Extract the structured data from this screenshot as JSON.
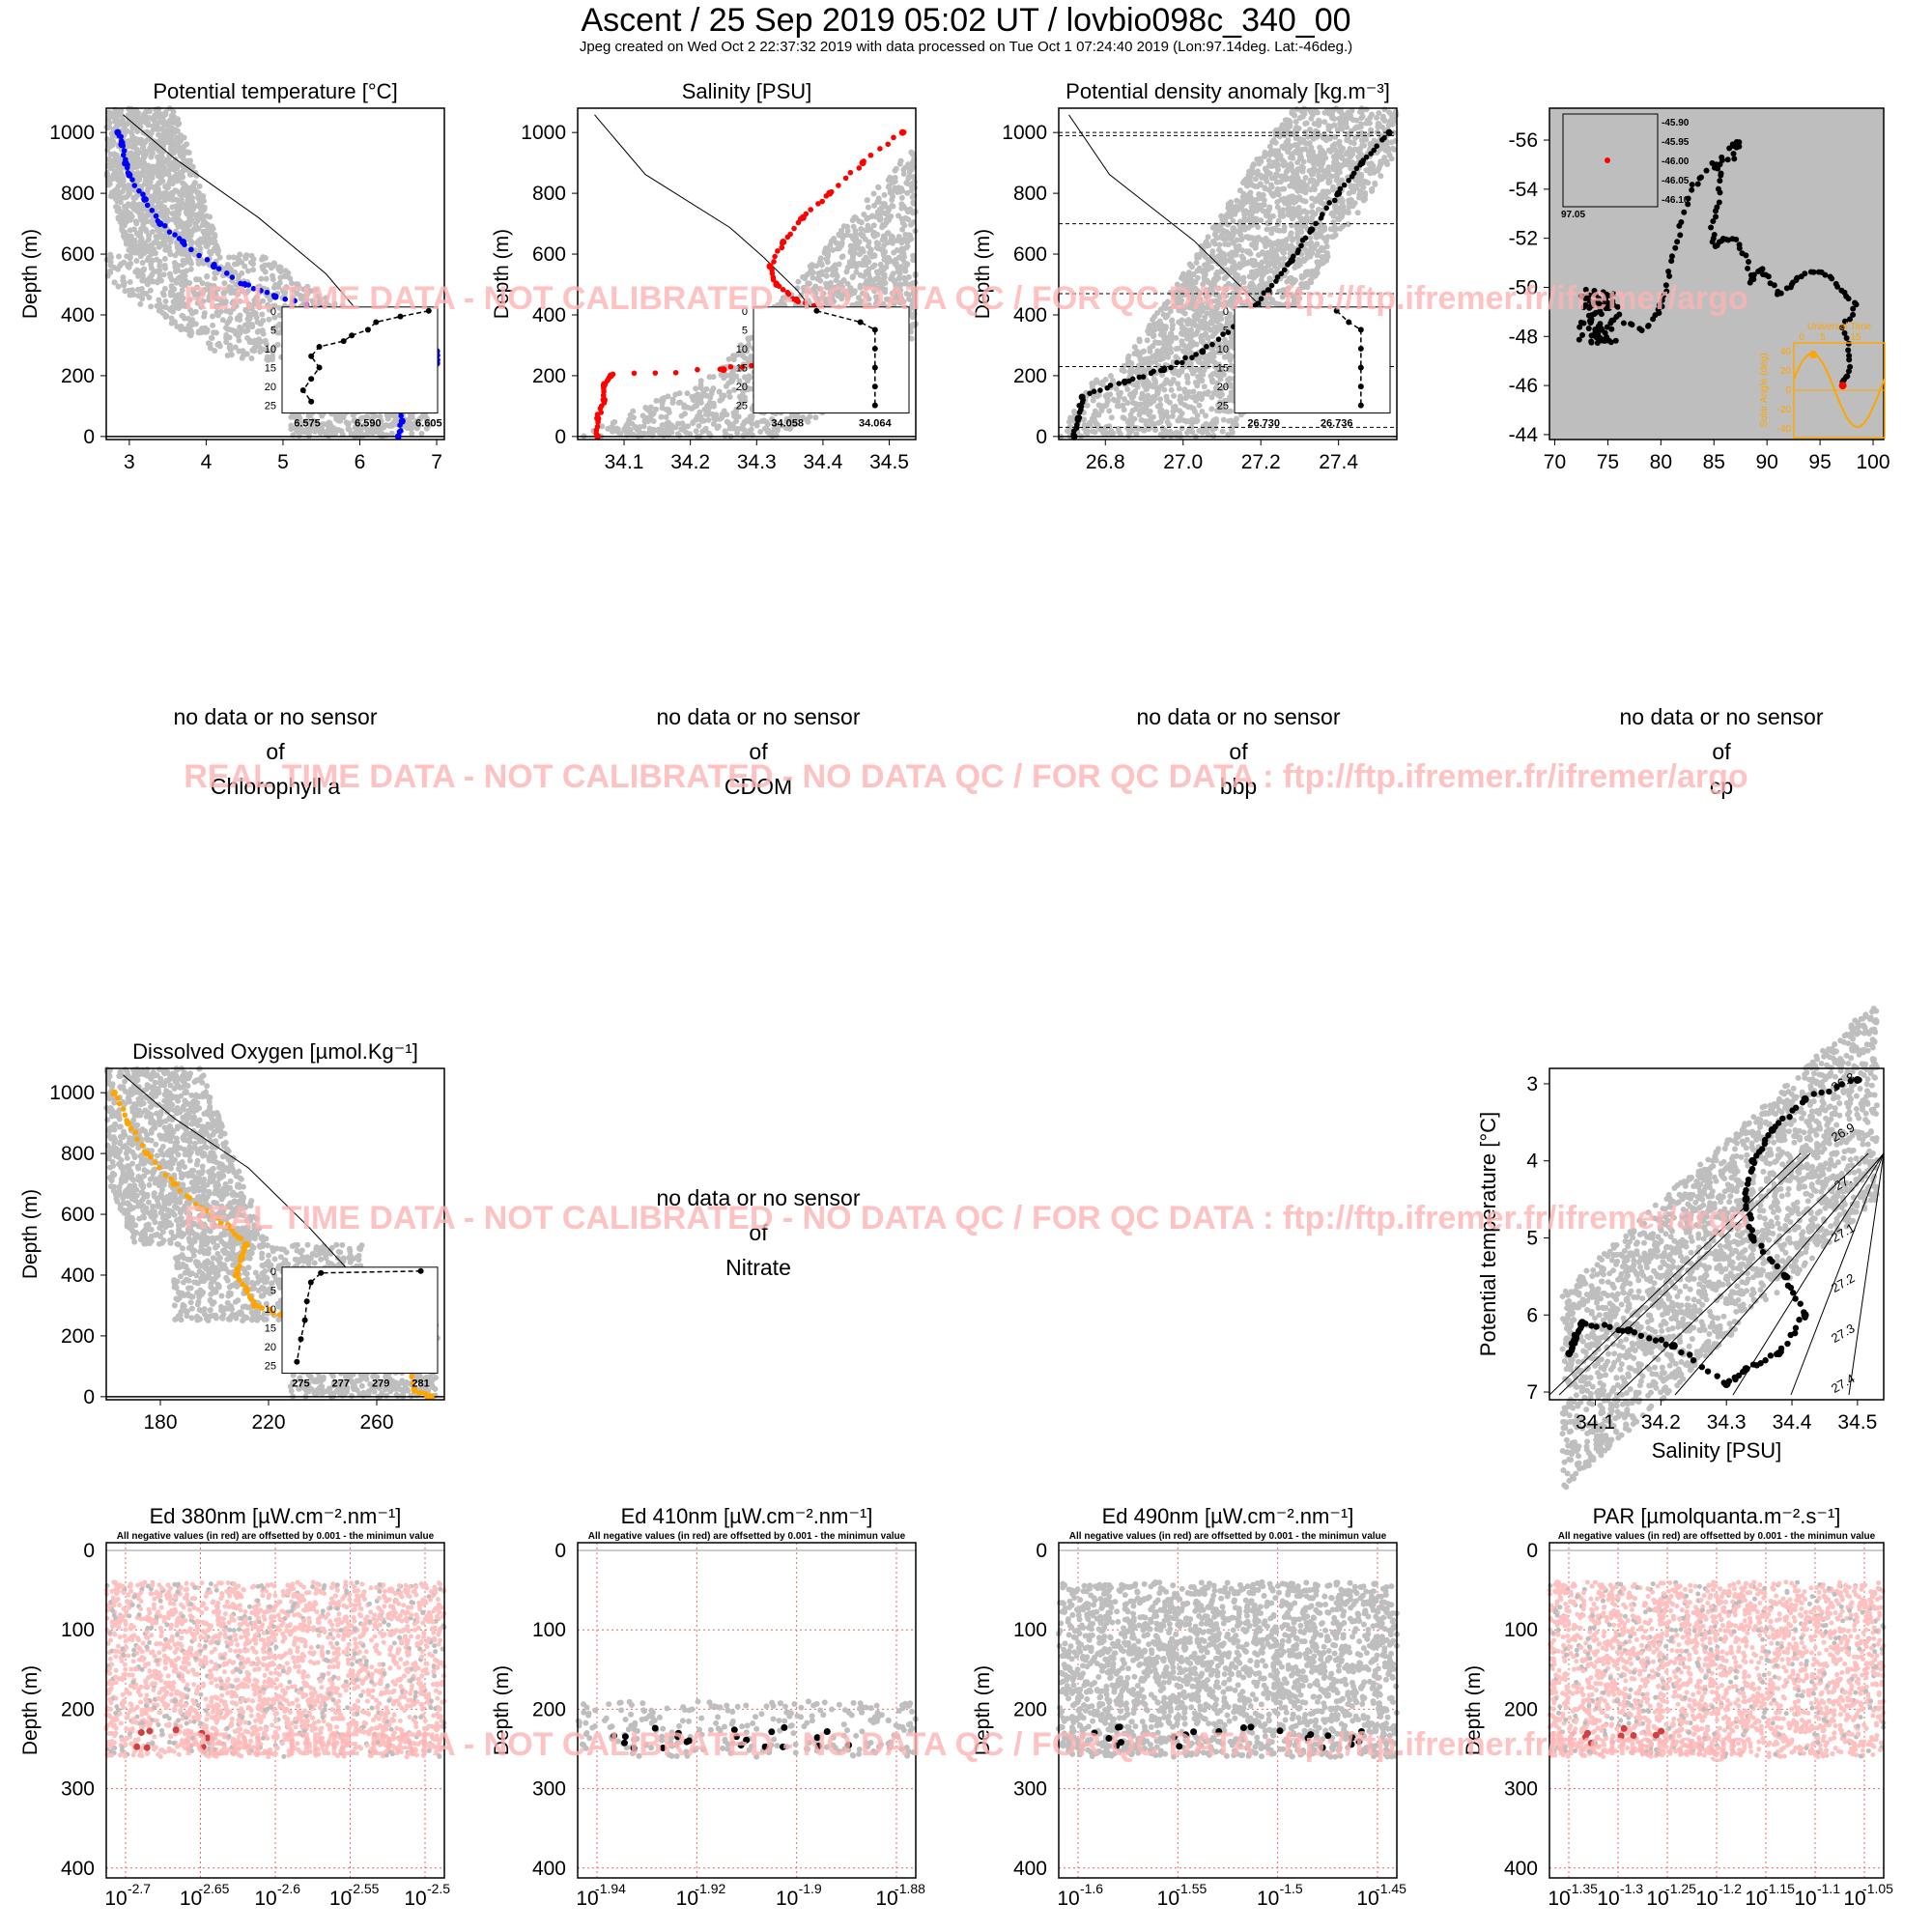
{
  "header": {
    "title": "Ascent / 25 Sep 2019 05:02 UT /  lovbio098c_340_00",
    "subtitle": "Jpeg created on Wed Oct  2 22:37:32 2019 with data processed on Tue Oct  1 07:24:40 2019 (Lon:97.14deg. Lat:-46deg.)"
  },
  "watermark": "REAL TIME DATA - NOT CALIBRATED - NO DATA QC   /  FOR QC DATA : ftp://ftp.ifremer.fr/ifremer/argo",
  "colors": {
    "temp": "#0000ff",
    "sal": "#ff0000",
    "dens": "#000000",
    "oxy": "#ffa500",
    "cloud": "#bebebe",
    "pink": "#ffc0c0",
    "watermark": "#ffb4b4",
    "panelbg": "#bebebe"
  },
  "no_data": {
    "line1": "no data or no sensor",
    "line2": "of",
    "sensors": [
      "Chlorophyll a",
      "CDOM",
      "bbp",
      "cp",
      "Nitrate"
    ]
  },
  "depth_label": "Depth (m)",
  "chart_data": [
    {
      "id": "temp",
      "type": "scatter",
      "title": "Potential temperature [°C]",
      "ylabel": "Depth (m)",
      "xlim": [
        2.7,
        7.1
      ],
      "ylim": [
        1080,
        -10
      ],
      "xticks": [
        "3",
        "4",
        "5",
        "6",
        "7"
      ],
      "yticks": [
        "0",
        "200",
        "400",
        "600",
        "800",
        "1000"
      ],
      "profile": [
        [
          6.5,
          0
        ],
        [
          6.55,
          50
        ],
        [
          6.5,
          100
        ],
        [
          6.5,
          150
        ],
        [
          6.2,
          190
        ],
        [
          6.6,
          230
        ],
        [
          7.0,
          240
        ],
        [
          7.0,
          280
        ],
        [
          6.6,
          330
        ],
        [
          6.0,
          370
        ],
        [
          5.5,
          420
        ],
        [
          4.9,
          460
        ],
        [
          4.5,
          500
        ],
        [
          4.1,
          560
        ],
        [
          3.7,
          640
        ],
        [
          3.4,
          700
        ],
        [
          3.2,
          780
        ],
        [
          3.0,
          860
        ],
        [
          2.95,
          900
        ],
        [
          2.9,
          960
        ],
        [
          2.85,
          1000
        ]
      ],
      "inset": {
        "xticks": [
          "6.575",
          "6.590",
          "6.605"
        ],
        "yticks": [
          "0",
          "5",
          "10",
          "15",
          "20",
          "25"
        ],
        "profile": [
          [
            6.605,
            0
          ],
          [
            6.598,
            1.5
          ],
          [
            6.592,
            3
          ],
          [
            6.59,
            5
          ],
          [
            6.586,
            6.5
          ],
          [
            6.584,
            8
          ],
          [
            6.578,
            9.5
          ],
          [
            6.576,
            12
          ],
          [
            6.578,
            15
          ],
          [
            6.576,
            18
          ],
          [
            6.574,
            21
          ],
          [
            6.576,
            24
          ]
        ]
      }
    },
    {
      "id": "sal",
      "type": "scatter",
      "title": "Salinity [PSU]",
      "ylabel": "Depth (m)",
      "xlim": [
        34.03,
        34.54
      ],
      "ylim": [
        1080,
        -10
      ],
      "xticks": [
        "34.1",
        "34.2",
        "34.3",
        "34.4",
        "34.5"
      ],
      "yticks": [
        "0",
        "200",
        "400",
        "600",
        "800",
        "1000"
      ],
      "profile": [
        [
          34.06,
          0
        ],
        [
          34.06,
          60
        ],
        [
          34.07,
          120
        ],
        [
          34.07,
          170
        ],
        [
          34.08,
          200
        ],
        [
          34.25,
          220
        ],
        [
          34.33,
          250
        ],
        [
          34.42,
          300
        ],
        [
          34.38,
          340
        ],
        [
          34.42,
          400
        ],
        [
          34.36,
          450
        ],
        [
          34.33,
          500
        ],
        [
          34.32,
          560
        ],
        [
          34.34,
          640
        ],
        [
          34.37,
          720
        ],
        [
          34.41,
          800
        ],
        [
          34.46,
          900
        ],
        [
          34.52,
          1000
        ]
      ],
      "inset": {
        "xticks": [
          "34.058",
          "34.064"
        ],
        "yticks": [
          "0",
          "5",
          "10",
          "15",
          "20",
          "25"
        ],
        "profile": [
          [
            34.06,
            0
          ],
          [
            34.063,
            3
          ],
          [
            34.064,
            5
          ],
          [
            34.064,
            10
          ],
          [
            34.064,
            15
          ],
          [
            34.064,
            20
          ],
          [
            34.064,
            25
          ]
        ]
      }
    },
    {
      "id": "dens",
      "type": "scatter",
      "title": "Potential density anomaly [kg.m⁻³]",
      "ylabel": "Depth (m)",
      "xlim": [
        26.68,
        27.55
      ],
      "ylim": [
        1080,
        -10
      ],
      "xticks": [
        "26.8",
        "27.0",
        "27.2",
        "27.4"
      ],
      "yticks": [
        "0",
        "200",
        "400",
        "600",
        "800",
        "1000"
      ],
      "hlines": [
        30,
        230,
        470,
        700,
        990,
        1000
      ],
      "profile": [
        [
          26.72,
          0
        ],
        [
          26.73,
          60
        ],
        [
          26.74,
          130
        ],
        [
          26.85,
          180
        ],
        [
          26.95,
          220
        ],
        [
          27.05,
          280
        ],
        [
          27.15,
          380
        ],
        [
          27.22,
          480
        ],
        [
          27.28,
          580
        ],
        [
          27.33,
          680
        ],
        [
          27.4,
          800
        ],
        [
          27.46,
          900
        ],
        [
          27.53,
          1000
        ]
      ],
      "inset": {
        "xticks": [
          "26.730",
          "26.736"
        ],
        "yticks": [
          "0",
          "5",
          "10",
          "15",
          "20",
          "25"
        ],
        "profile": [
          [
            26.736,
            0
          ],
          [
            26.737,
            3
          ],
          [
            26.738,
            5
          ],
          [
            26.738,
            10
          ],
          [
            26.738,
            15
          ],
          [
            26.738,
            20
          ],
          [
            26.738,
            25
          ]
        ]
      }
    },
    {
      "id": "map",
      "type": "scatter",
      "title": "",
      "xlim": [
        69.5,
        101
      ],
      "ylim": [
        -57.3,
        -43.8
      ],
      "xticks": [
        "70",
        "75",
        "80",
        "85",
        "90",
        "95",
        "100"
      ],
      "yticks": [
        "-44",
        "-46",
        "-48",
        "-50",
        "-52",
        "-54",
        "-56"
      ],
      "track": [
        [
          97.2,
          -46.1
        ],
        [
          97.8,
          -46.6
        ],
        [
          97.6,
          -47.5
        ],
        [
          97.2,
          -48.5
        ],
        [
          98.5,
          -49.2
        ],
        [
          97.2,
          -49.8
        ],
        [
          96.1,
          -50.3
        ],
        [
          94.8,
          -50.7
        ],
        [
          93.1,
          -50.4
        ],
        [
          92.5,
          -50.2
        ],
        [
          91.2,
          -49.7
        ],
        [
          90.1,
          -50.4
        ],
        [
          89.3,
          -50.8
        ],
        [
          88.5,
          -50.1
        ],
        [
          88.2,
          -51.2
        ],
        [
          87.1,
          -51.9
        ],
        [
          86.0,
          -52.0
        ],
        [
          85.1,
          -51.6
        ],
        [
          84.8,
          -52.5
        ],
        [
          85.3,
          -53.4
        ],
        [
          85.8,
          -54.5
        ],
        [
          85.1,
          -55.0
        ],
        [
          86.8,
          -55.3
        ],
        [
          87.4,
          -56.0
        ],
        [
          86.7,
          -55.8
        ],
        [
          83.9,
          -54.6
        ],
        [
          82.9,
          -54.0
        ],
        [
          82.1,
          -52.7
        ],
        [
          81.3,
          -51.6
        ],
        [
          80.6,
          -50.3
        ],
        [
          80.1,
          -49.3
        ],
        [
          79.6,
          -48.9
        ],
        [
          78.4,
          -48.2
        ],
        [
          76.5,
          -48.6
        ],
        [
          75.1,
          -49.8
        ],
        [
          74.1,
          -49.1
        ],
        [
          73.2,
          -48.4
        ],
        [
          74.7,
          -47.8
        ],
        [
          73.6,
          -48.0
        ]
      ],
      "last": [
        97.14,
        -46.0
      ],
      "inset": {
        "xlabel": "97.05",
        "yticks": [
          "-45.90",
          "-45.95",
          "-46.00",
          "-46.05",
          "-46.10"
        ]
      },
      "sun": {
        "title": "Universal Time",
        "ticks": [
          "0",
          "5",
          "15"
        ],
        "ylabel": "Solar Angle (deg)",
        "yticks": [
          "40",
          "20",
          "0",
          "-20",
          "-40"
        ]
      }
    },
    {
      "id": "oxy",
      "type": "scatter",
      "title": "Dissolved Oxygen [µmol.Kg⁻¹]",
      "ylabel": "Depth (m)",
      "xlim": [
        160,
        285
      ],
      "ylim": [
        1080,
        -10
      ],
      "xticks": [
        "180",
        "220",
        "260"
      ],
      "yticks": [
        "0",
        "200",
        "400",
        "600",
        "800",
        "1000"
      ],
      "profile": [
        [
          280,
          0
        ],
        [
          274,
          20
        ],
        [
          272,
          100
        ],
        [
          272,
          170
        ],
        [
          260,
          220
        ],
        [
          240,
          240
        ],
        [
          225,
          270
        ],
        [
          215,
          300
        ],
        [
          212,
          350
        ],
        [
          208,
          400
        ],
        [
          210,
          460
        ],
        [
          212,
          500
        ],
        [
          205,
          560
        ],
        [
          195,
          620
        ],
        [
          185,
          700
        ],
        [
          175,
          800
        ],
        [
          168,
          900
        ],
        [
          163,
          1000
        ]
      ],
      "inset": {
        "xticks": [
          "275",
          "277",
          "279",
          "281"
        ],
        "yticks": [
          "0",
          "5",
          "10",
          "15",
          "20",
          "25"
        ],
        "profile": [
          [
            281,
            0
          ],
          [
            276,
            0.5
          ],
          [
            275.5,
            3
          ],
          [
            275.3,
            8
          ],
          [
            275.2,
            13
          ],
          [
            275.0,
            18
          ],
          [
            274.8,
            24
          ]
        ]
      }
    },
    {
      "id": "ts",
      "type": "scatter",
      "title": "",
      "xlabel": "Salinity [PSU]",
      "ylabel": "Potential temperature [°C]",
      "xlim": [
        34.03,
        34.54
      ],
      "ylim": [
        2.8,
        7.1
      ],
      "xticks": [
        "34.1",
        "34.2",
        "34.3",
        "34.4",
        "34.5"
      ],
      "yticks": [
        "3",
        "4",
        "5",
        "6",
        "7"
      ],
      "isopycnals": [
        "26.8",
        "26.9",
        "27.",
        "27.1",
        "27.2",
        "27.3",
        "27.4"
      ],
      "profile": [
        [
          34.06,
          6.5
        ],
        [
          34.07,
          6.3
        ],
        [
          34.08,
          6.1
        ],
        [
          34.15,
          6.2
        ],
        [
          34.22,
          6.4
        ],
        [
          34.3,
          6.9
        ],
        [
          34.33,
          6.7
        ],
        [
          34.38,
          6.5
        ],
        [
          34.42,
          6.0
        ],
        [
          34.39,
          5.5
        ],
        [
          34.34,
          5.0
        ],
        [
          34.33,
          4.5
        ],
        [
          34.34,
          4.0
        ],
        [
          34.37,
          3.6
        ],
        [
          34.42,
          3.2
        ],
        [
          34.5,
          2.95
        ]
      ]
    },
    {
      "id": "ed380",
      "type": "scatter",
      "title": "Ed 380nm [µW.cm⁻².nm⁻¹]",
      "note": "All negative values (in red) are offsetted by 0.001 - the minimun value",
      "ylabel": "Depth (m)",
      "yticks": [
        "0",
        "100",
        "200",
        "300",
        "400"
      ],
      "xticks": [
        "-2.7",
        "-2.65",
        "-2.6",
        "-2.55",
        "-2.5"
      ]
    },
    {
      "id": "ed410",
      "type": "scatter",
      "title": "Ed 410nm [µW.cm⁻².nm⁻¹]",
      "note": "All negative values (in red) are offsetted by 0.001 - the minimun value",
      "ylabel": "Depth (m)",
      "yticks": [
        "0",
        "100",
        "200",
        "300",
        "400"
      ],
      "xticks": [
        "-1.94",
        "-1.92",
        "-1.9",
        "-1.88"
      ]
    },
    {
      "id": "ed490",
      "type": "scatter",
      "title": "Ed 490nm [µW.cm⁻².nm⁻¹]",
      "note": "All negative values (in red) are offsetted by 0.001 - the minimun value",
      "ylabel": "Depth (m)",
      "yticks": [
        "0",
        "100",
        "200",
        "300",
        "400"
      ],
      "xticks": [
        "-1.6",
        "-1.55",
        "-1.5",
        "-1.45"
      ]
    },
    {
      "id": "par",
      "type": "scatter",
      "title": "PAR [µmolquanta.m⁻².s⁻¹]",
      "note": "All negative values (in red) are offsetted by 0.001 - the minimun value",
      "ylabel": "Depth (m)",
      "yticks": [
        "0",
        "100",
        "200",
        "300",
        "400"
      ],
      "xticks": [
        "-1.35",
        "-1.3",
        "-1.25",
        "-1.2",
        "-1.15",
        "-1.1",
        "-1.05"
      ]
    }
  ]
}
